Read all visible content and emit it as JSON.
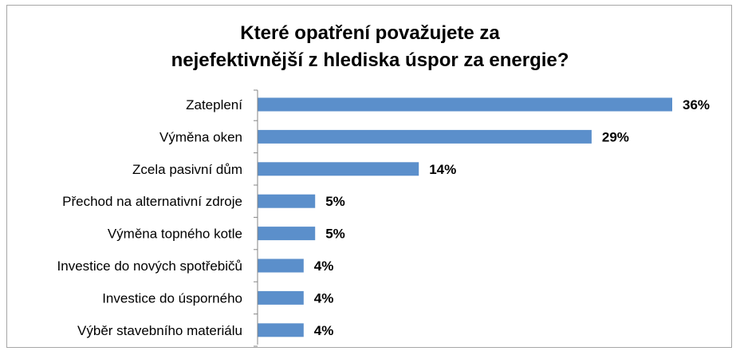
{
  "chart_data": {
    "type": "bar",
    "orientation": "horizontal",
    "title_line1": "Které opatření považujete za",
    "title_line2": "nejefektivnější z hlediska úspor za energie?",
    "categories": [
      "Zateplení",
      "Výměna oken",
      "Zcela pasivní dům",
      "Přechod na alternativní zdroje",
      "Výměna topného kotle",
      "Investice do nových spotřebičů",
      "Investice do úsporného",
      "Výběr stavebního materiálu"
    ],
    "values": [
      36,
      29,
      14,
      5,
      5,
      4,
      4,
      4
    ],
    "value_labels": [
      "36%",
      "29%",
      "14%",
      "5%",
      "5%",
      "4%",
      "4%",
      "4%"
    ],
    "unit": "%",
    "xlim": [
      0,
      36
    ],
    "grid": false,
    "legend": "none",
    "bar_color": "#5b8fcb"
  }
}
